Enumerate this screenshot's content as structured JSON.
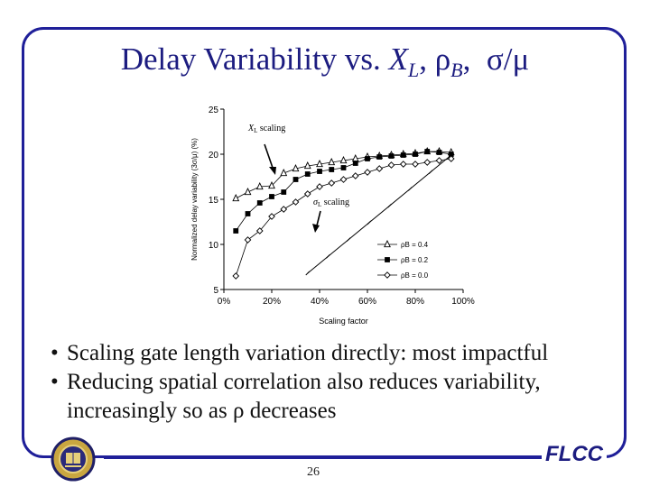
{
  "slide": {
    "title_text": "Delay Variability vs. ",
    "title_x": "X",
    "title_x_sub": "L",
    "title_rho": "ρ",
    "title_rho_sub": "B",
    "title_sigma": "σ/μ",
    "bullets": [
      "Scaling gate length variation directly: most impactful",
      "Reducing spatial correlation also reduces variability, increasingly so as ρ decreases"
    ],
    "bullet_1": "Scaling gate length variation directly: most impactful",
    "bullet_2_line1": "Reducing spatial correlation also reduces variability,",
    "bullet_2_line2": "increasingly so as ρ decreases",
    "page_number": "26",
    "footer_brand": "FLCC"
  },
  "colors": {
    "frame": "#1f1f99",
    "title": "#1c1c80",
    "series": "#000000"
  },
  "chart_data": {
    "type": "line",
    "xlabel": "Scaling factor",
    "ylabel": "Normalized delay variability (3σ/μ) (%)",
    "xlim": [
      0,
      100
    ],
    "ylim": [
      5,
      25
    ],
    "xticks": [
      0,
      20,
      40,
      60,
      80,
      100
    ],
    "xtick_labels": [
      "0%",
      "20%",
      "40%",
      "60%",
      "80%",
      "100%"
    ],
    "yticks": [
      5,
      10,
      15,
      20,
      25
    ],
    "grid": false,
    "legend_position": "bottom-right",
    "series": [
      {
        "name": "ρB = 0.4",
        "marker": "triangle-open",
        "x": [
          5,
          10,
          15,
          20,
          25,
          30,
          35,
          40,
          45,
          50,
          55,
          60,
          65,
          70,
          75,
          80,
          85,
          90,
          95
        ],
        "y": [
          15.1,
          15.8,
          16.4,
          16.5,
          17.9,
          18.4,
          18.7,
          18.9,
          19.1,
          19.3,
          19.5,
          19.7,
          19.8,
          19.9,
          20.0,
          20.1,
          20.3,
          20.3,
          20.2
        ]
      },
      {
        "name": "ρB = 0.2",
        "marker": "square-filled",
        "x": [
          5,
          10,
          15,
          20,
          25,
          30,
          35,
          40,
          45,
          50,
          55,
          60,
          65,
          70,
          75,
          80,
          85,
          90,
          95
        ],
        "y": [
          11.5,
          13.4,
          14.6,
          15.3,
          15.8,
          17.2,
          17.8,
          18.1,
          18.3,
          18.5,
          19.0,
          19.5,
          19.7,
          19.8,
          19.9,
          20.0,
          20.3,
          20.2,
          20.0
        ]
      },
      {
        "name": "ρB = 0.0",
        "marker": "diamond-open",
        "x": [
          5,
          10,
          15,
          20,
          25,
          30,
          35,
          40,
          45,
          50,
          55,
          60,
          65,
          70,
          75,
          80,
          85,
          90,
          95
        ],
        "y": [
          6.5,
          10.5,
          11.5,
          13.1,
          13.9,
          14.7,
          15.6,
          16.4,
          16.8,
          17.2,
          17.6,
          18.0,
          18.4,
          18.8,
          18.9,
          18.9,
          19.1,
          19.3,
          19.5
        ]
      }
    ],
    "annotations": [
      {
        "text": "X",
        "sub": "L",
        "rest": " scaling"
      },
      {
        "text": "σ",
        "sub": "L",
        "rest": " scaling"
      }
    ],
    "sigma_scaling_line": {
      "x": [
        35,
        95
      ],
      "y": [
        6.8,
        19.9
      ]
    }
  }
}
